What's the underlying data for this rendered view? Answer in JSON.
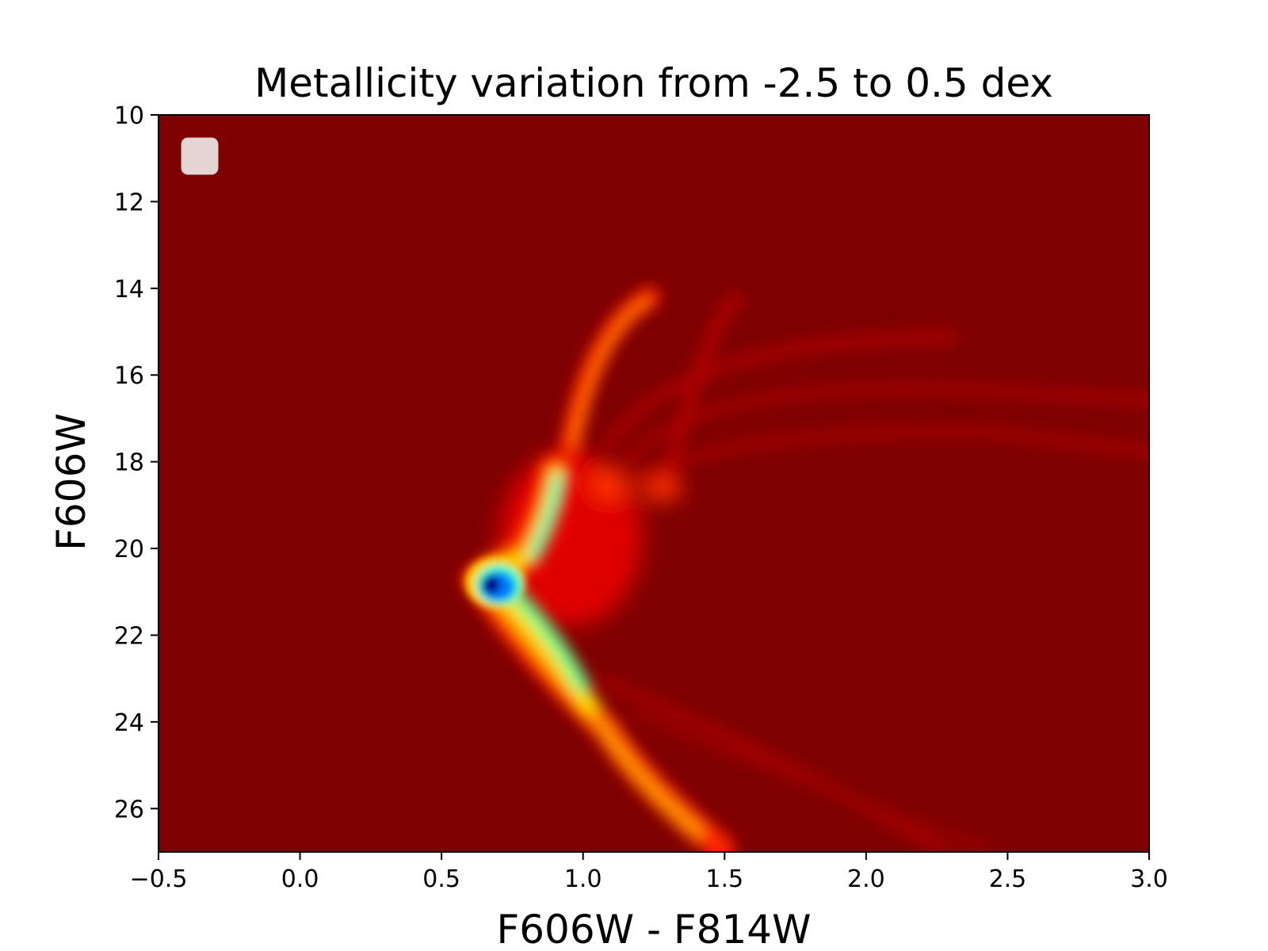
{
  "chart_data": {
    "type": "heatmap",
    "title": "Metallicity variation from -2.5 to 0.5 dex",
    "xlabel": "F606W - F814W",
    "ylabel": "F606W",
    "xlim": [
      -0.5,
      3.0
    ],
    "ylim": [
      10,
      27
    ],
    "y_inverted": true,
    "xticks": [
      -0.5,
      0.0,
      0.5,
      1.0,
      1.5,
      2.0,
      2.5,
      3.0
    ],
    "xtick_labels": [
      "−0.5",
      "0.0",
      "0.5",
      "1.0",
      "1.5",
      "2.0",
      "2.5",
      "3.0"
    ],
    "yticks": [
      10,
      12,
      14,
      16,
      18,
      20,
      22,
      24,
      26
    ],
    "ytick_labels": [
      "10",
      "12",
      "14",
      "16",
      "18",
      "20",
      "22",
      "24",
      "26"
    ],
    "colormap": "jet",
    "background_color": "#7f0000",
    "legend": {
      "placement": "upper-left",
      "entries": []
    },
    "grid": false,
    "density_features": [
      {
        "name": "main-sequence-turnoff-peak",
        "x": 0.66,
        "y": 20.85,
        "level": 1.0
      },
      {
        "name": "subgiant-branch-blob",
        "x": 0.88,
        "y": 18.6,
        "level": 0.55
      },
      {
        "name": "main-sequence-blue",
        "x": 0.82,
        "y": 22.2,
        "level": 0.6
      },
      {
        "name": "red-giant-branch-bright",
        "x": 1.05,
        "y": 16.5,
        "level": 0.3
      },
      {
        "name": "lower-main-sequence",
        "x": 1.3,
        "y": 25.9,
        "level": 0.3
      },
      {
        "name": "metal-rich-giant-branch",
        "x": 1.6,
        "y": 16.8,
        "level": 0.12
      },
      {
        "name": "metal-rich-main-sequence",
        "x": 1.9,
        "y": 26.0,
        "level": 0.1
      }
    ]
  }
}
